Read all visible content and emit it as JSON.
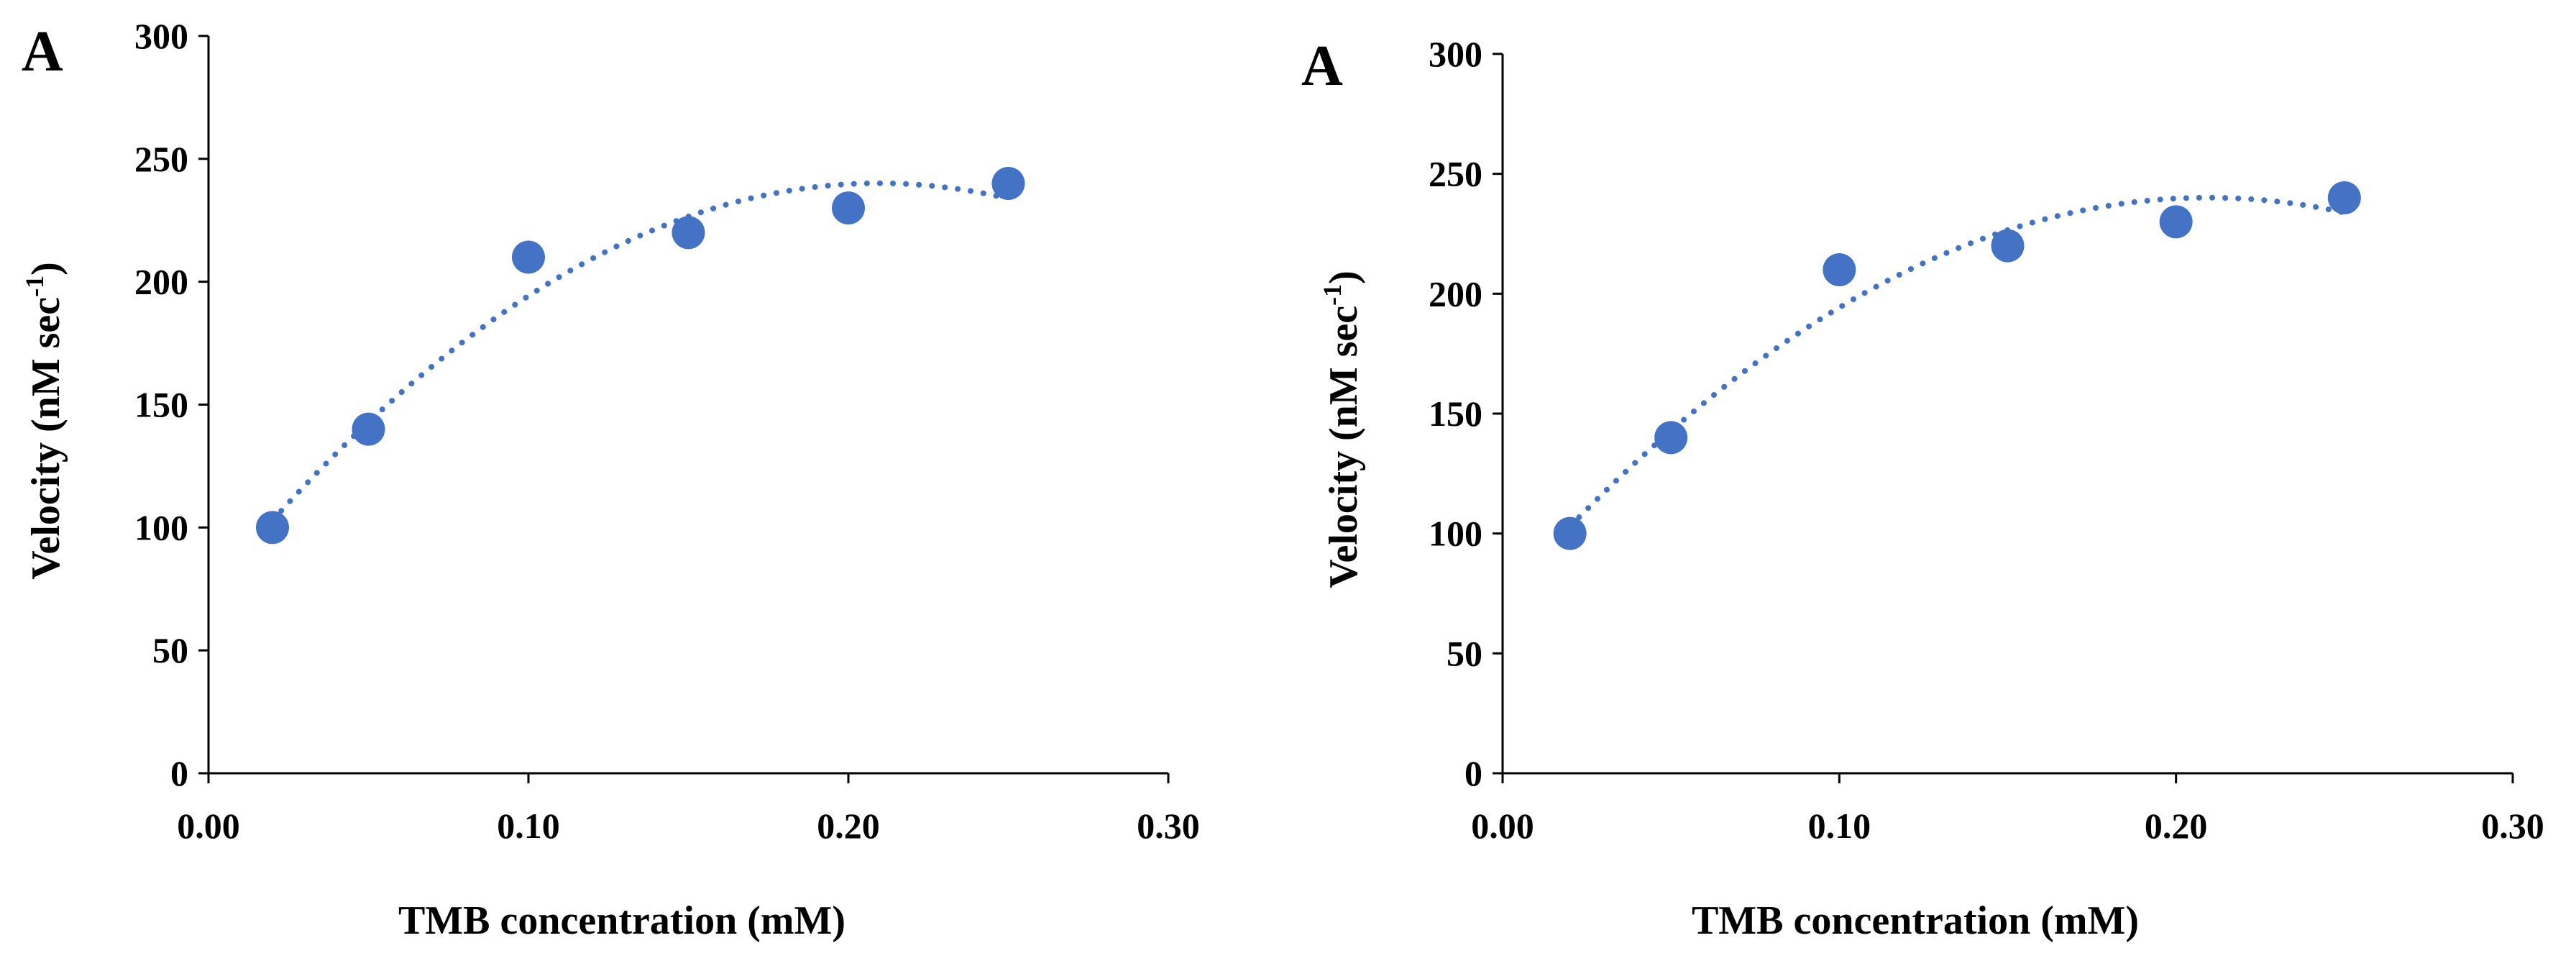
{
  "chart_data": [
    {
      "type": "scatter",
      "panel_label": "A",
      "x": [
        0.02,
        0.05,
        0.1,
        0.15,
        0.2,
        0.25
      ],
      "y": [
        100,
        140,
        210,
        220,
        230,
        240
      ],
      "xlabel": "TMB concentration (mM)",
      "ylabel": "Velocity (nM sec",
      "ylabel_superscript": "-1",
      "ylabel_suffix": ")",
      "xlim": [
        0,
        0.3
      ],
      "ylim": [
        0,
        300
      ],
      "xticks": [
        "0.00",
        "0.10",
        "0.20",
        "0.30"
      ],
      "yticks": [
        "0",
        "50",
        "100",
        "150",
        "200",
        "250",
        "300"
      ],
      "trendline": "polynomial (order 2), dotted",
      "grid": false,
      "legend": "none",
      "color": "#4472C4"
    },
    {
      "type": "scatter",
      "panel_label": "A",
      "x": [
        0.02,
        0.05,
        0.1,
        0.15,
        0.2,
        0.25
      ],
      "y": [
        100,
        140,
        210,
        220,
        230,
        240
      ],
      "xlabel": "TMB concentration (mM)",
      "ylabel": "Velocity (nM sec",
      "ylabel_superscript": "-1",
      "ylabel_suffix": ")",
      "xlim": [
        0,
        0.3
      ],
      "ylim": [
        0,
        300
      ],
      "xticks": [
        "0.00",
        "0.10",
        "0.20",
        "0.30"
      ],
      "yticks": [
        "0",
        "50",
        "100",
        "150",
        "200",
        "250",
        "300"
      ],
      "trendline": "polynomial (order 2), dotted",
      "grid": false,
      "legend": "none",
      "color": "#4472C4"
    }
  ]
}
